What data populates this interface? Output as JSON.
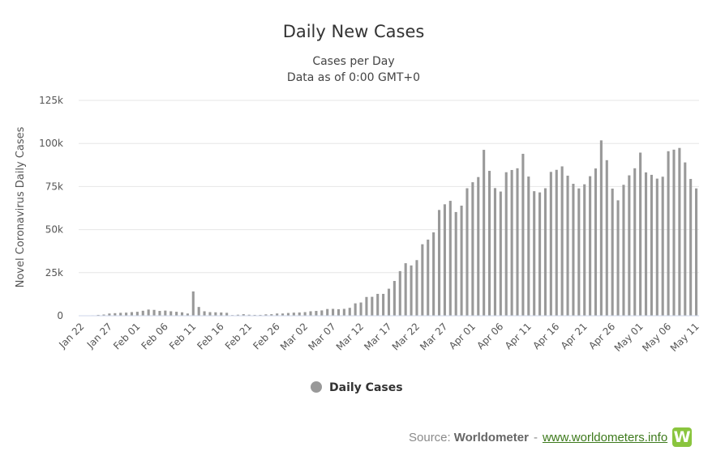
{
  "chart_data": {
    "type": "bar",
    "title": "Daily New Cases",
    "subtitle_lines": [
      "Cases per Day",
      "Data as of 0:00 GMT+0"
    ],
    "ylabel": "Novel Coronavirus Daily Cases",
    "xlabel": "",
    "ylim": [
      0,
      125000
    ],
    "yticks": [
      0,
      25000,
      50000,
      75000,
      100000,
      125000
    ],
    "ytick_labels": [
      "0",
      "25k",
      "50k",
      "75k",
      "100k",
      "125k"
    ],
    "grid": true,
    "legend_position": "bottom-center",
    "color": "#999999",
    "xtick_labels": [
      "Jan 22",
      "Jan 27",
      "Feb 01",
      "Feb 06",
      "Feb 11",
      "Feb 16",
      "Feb 21",
      "Feb 26",
      "Mar 02",
      "Mar 07",
      "Mar 12",
      "Mar 17",
      "Mar 22",
      "Mar 27",
      "Apr 01",
      "Apr 06",
      "Apr 11",
      "Apr 16",
      "Apr 21",
      "Apr 26",
      "May 01",
      "May 06",
      "May 11"
    ],
    "xtick_every": 5,
    "series": [
      {
        "name": "Daily Cases",
        "values": [
          0,
          100,
          260,
          500,
          700,
          1300,
          1500,
          1700,
          1800,
          2100,
          2300,
          2900,
          3600,
          3400,
          2800,
          3000,
          2600,
          2300,
          2000,
          1300,
          14100,
          5100,
          2600,
          2100,
          2000,
          1900,
          1700,
          400,
          600,
          900,
          600,
          500,
          500,
          800,
          900,
          1300,
          1300,
          1600,
          1800,
          1900,
          2100,
          2600,
          2800,
          3100,
          3900,
          4000,
          3800,
          4000,
          4600,
          7200,
          7700,
          10900,
          11000,
          12700,
          12700,
          15700,
          20200,
          25900,
          30500,
          29200,
          32300,
          41500,
          44200,
          48400,
          61400,
          64700,
          66700,
          60200,
          63900,
          74000,
          77500,
          80500,
          96300,
          84100,
          74100,
          72100,
          83300,
          84600,
          85600,
          94000,
          80800,
          72300,
          71600,
          74000,
          83500,
          84700,
          86700,
          81300,
          76600,
          73900,
          76300,
          81000,
          85500,
          101800,
          90300,
          73800,
          67000,
          76000,
          81500,
          85600,
          94700,
          83200,
          81800,
          79600,
          80700,
          95500,
          96400,
          97400,
          89000,
          79400,
          73900
        ]
      }
    ]
  },
  "source": {
    "label": "Source:",
    "brand": "Worldometer",
    "separator": "-",
    "link": "www.worldometers.info",
    "logo_letter": "W"
  },
  "icons": {
    "legend": "circle-legend-icon",
    "logo": "worldometer-logo-icon"
  }
}
